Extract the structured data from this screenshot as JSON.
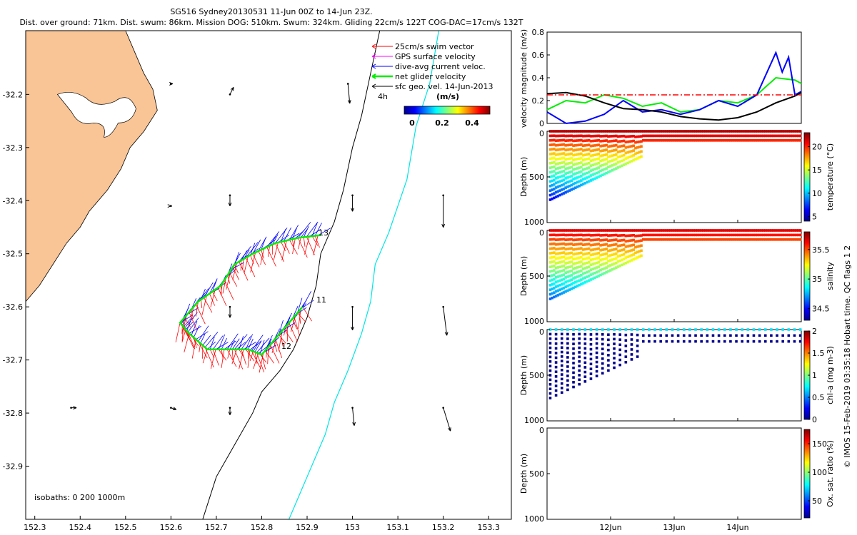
{
  "header": {
    "line1": "SG516 Sydney20130531 11-Jun 00Z to 14-Jun 23Z.",
    "line2": "Dist. over ground: 71km. Dist. swum: 86km. Mission DOG: 510km. Swum: 324km. Gliding 22cm/s 122T COG-DAC=17cm/s 132T"
  },
  "footer_credit": "© IMOS 15-Feb-2019 03:35:18 Hobart time. QC flags 1  2",
  "colors": {
    "land": "#f9c596",
    "swim_vector": "#ff0000",
    "gps_velocity": "#ff00ff",
    "dive_avg": "#0000ff",
    "net_velocity": "#00ee00",
    "sfc_geo": "#000000",
    "cyan_contour": "#00e5e5"
  },
  "chart_data": [
    {
      "type": "map",
      "xlim": [
        152.28,
        153.35
      ],
      "ylim": [
        -33.0,
        -32.08
      ],
      "x_ticks": [
        "152.3",
        "152.4",
        "152.5",
        "152.6",
        "152.7",
        "152.8",
        "152.9",
        "153",
        "153.1",
        "153.2",
        "153.3"
      ],
      "y_ticks": [
        "-32.2",
        "-32.3",
        "-32.4",
        "-32.5",
        "-32.6",
        "-32.7",
        "-32.8",
        "-32.9"
      ],
      "legend": [
        "25cm/s swim vector",
        "GPS surface velocity",
        "dive-avg current veloc.",
        "net glider velocity",
        "sfc geo. vel. 14-Jun-2013"
      ],
      "legend_note": "4h",
      "colorbar": {
        "label": "(m/s)",
        "ticks": [
          "0",
          "0.2",
          "0.4"
        ],
        "range": [
          0,
          0.5
        ]
      },
      "isobath_text": "isobaths: 0   200  1000m",
      "track_labels": [
        {
          "text": "11",
          "lon": 152.91,
          "lat": -32.59
        },
        {
          "text": "12",
          "lon": 152.79,
          "lat": -32.69
        },
        {
          "text": "13",
          "lon": 152.91,
          "lat": -32.48
        }
      ],
      "track": [
        [
          152.89,
          -32.6
        ],
        [
          152.86,
          -32.63
        ],
        [
          152.83,
          -32.66
        ],
        [
          152.8,
          -32.69
        ],
        [
          152.77,
          -32.68
        ],
        [
          152.73,
          -32.68
        ],
        [
          152.68,
          -32.68
        ],
        [
          152.64,
          -32.65
        ],
        [
          152.62,
          -32.63
        ],
        [
          152.66,
          -32.59
        ],
        [
          152.71,
          -32.56
        ],
        [
          152.74,
          -32.52
        ],
        [
          152.78,
          -32.5
        ],
        [
          152.83,
          -32.48
        ],
        [
          152.88,
          -32.47
        ],
        [
          152.93,
          -32.465
        ]
      ],
      "geo_vectors": [
        {
          "lon": 152.6,
          "lat": -32.18,
          "u": 0.01,
          "v": 0.0
        },
        {
          "lon": 152.73,
          "lat": -32.2,
          "u": 0.02,
          "v": 0.04
        },
        {
          "lon": 152.99,
          "lat": -32.18,
          "u": 0.01,
          "v": -0.11
        },
        {
          "lon": 152.6,
          "lat": -32.41,
          "u": 0.0,
          "v": 0.0
        },
        {
          "lon": 152.73,
          "lat": -32.39,
          "u": 0.0,
          "v": -0.06
        },
        {
          "lon": 153.0,
          "lat": -32.39,
          "u": 0.0,
          "v": -0.09
        },
        {
          "lon": 153.2,
          "lat": -32.39,
          "u": 0.0,
          "v": -0.18
        },
        {
          "lon": 152.73,
          "lat": -32.6,
          "u": 0.0,
          "v": -0.06
        },
        {
          "lon": 153.0,
          "lat": -32.6,
          "u": 0.0,
          "v": -0.13
        },
        {
          "lon": 153.2,
          "lat": -32.6,
          "u": 0.02,
          "v": -0.16
        },
        {
          "lon": 152.38,
          "lat": -32.79,
          "u": 0.03,
          "v": 0.0
        },
        {
          "lon": 152.6,
          "lat": -32.79,
          "u": 0.03,
          "v": -0.01
        },
        {
          "lon": 152.73,
          "lat": -32.79,
          "u": 0.0,
          "v": -0.04
        },
        {
          "lon": 153.0,
          "lat": -32.79,
          "u": 0.01,
          "v": -0.1
        },
        {
          "lon": 153.2,
          "lat": -32.79,
          "u": 0.04,
          "v": -0.13
        }
      ],
      "coastline": [
        [
          152.28,
          -32.08
        ],
        [
          152.5,
          -32.08
        ],
        [
          152.52,
          -32.12
        ],
        [
          152.54,
          -32.16
        ],
        [
          152.56,
          -32.19
        ],
        [
          152.57,
          -32.23
        ],
        [
          152.54,
          -32.27
        ],
        [
          152.51,
          -32.3
        ],
        [
          152.49,
          -32.34
        ],
        [
          152.46,
          -32.38
        ],
        [
          152.42,
          -32.42
        ],
        [
          152.4,
          -32.45
        ],
        [
          152.37,
          -32.48
        ],
        [
          152.34,
          -32.52
        ],
        [
          152.31,
          -32.56
        ],
        [
          152.29,
          -32.58
        ],
        [
          152.28,
          -32.59
        ]
      ],
      "isobath_200": [
        [
          153.06,
          -32.08
        ],
        [
          153.04,
          -32.16
        ],
        [
          153.02,
          -32.24
        ],
        [
          153.0,
          -32.3
        ],
        [
          152.98,
          -32.38
        ],
        [
          152.96,
          -32.44
        ],
        [
          152.93,
          -32.5
        ],
        [
          152.92,
          -32.56
        ],
        [
          152.9,
          -32.62
        ],
        [
          152.87,
          -32.68
        ],
        [
          152.84,
          -32.72
        ],
        [
          152.8,
          -32.76
        ],
        [
          152.78,
          -32.8
        ],
        [
          152.74,
          -32.86
        ],
        [
          152.7,
          -32.92
        ],
        [
          152.67,
          -33.0
        ]
      ],
      "isobath_1000": [
        [
          153.19,
          -32.08
        ],
        [
          153.17,
          -32.18
        ],
        [
          153.14,
          -32.26
        ],
        [
          153.12,
          -32.36
        ],
        [
          153.08,
          -32.46
        ],
        [
          153.05,
          -32.52
        ],
        [
          153.04,
          -32.59
        ],
        [
          153.02,
          -32.65
        ],
        [
          152.99,
          -32.72
        ],
        [
          152.96,
          -32.78
        ],
        [
          152.94,
          -32.84
        ],
        [
          152.92,
          -32.88
        ],
        [
          152.9,
          -32.92
        ],
        [
          152.88,
          -32.96
        ],
        [
          152.86,
          -33.0
        ]
      ]
    },
    {
      "type": "line",
      "ylabel": "velocity magnitude (m/s)",
      "ylim": [
        0,
        0.8
      ],
      "y_ticks": [
        "0",
        "0.2",
        "0.4",
        "0.6",
        "0.8"
      ],
      "x_days": [
        11,
        15
      ],
      "series": [
        {
          "color": "#00ee00",
          "style": "solid",
          "t": [
            11.0,
            11.3,
            11.6,
            11.9,
            12.2,
            12.5,
            12.8,
            13.1,
            13.4,
            13.7,
            14.0,
            14.3,
            14.6,
            14.9,
            15.0
          ],
          "values": [
            0.12,
            0.2,
            0.18,
            0.25,
            0.22,
            0.15,
            0.18,
            0.1,
            0.12,
            0.2,
            0.18,
            0.25,
            0.4,
            0.38,
            0.35
          ]
        },
        {
          "color": "#0000ff",
          "style": "solid",
          "t": [
            11.0,
            11.3,
            11.6,
            11.9,
            12.2,
            12.5,
            12.8,
            13.1,
            13.4,
            13.7,
            14.0,
            14.3,
            14.6,
            14.7,
            14.8,
            14.9,
            15.0
          ],
          "values": [
            0.1,
            0.0,
            0.02,
            0.08,
            0.2,
            0.1,
            0.12,
            0.08,
            0.12,
            0.2,
            0.15,
            0.25,
            0.62,
            0.45,
            0.58,
            0.25,
            0.28
          ]
        },
        {
          "color": "#000000",
          "style": "solid",
          "t": [
            11.0,
            11.3,
            11.6,
            11.9,
            12.2,
            12.5,
            12.8,
            13.1,
            13.4,
            13.7,
            14.0,
            14.3,
            14.6,
            14.9,
            15.0
          ],
          "values": [
            0.26,
            0.27,
            0.24,
            0.18,
            0.13,
            0.12,
            0.1,
            0.06,
            0.04,
            0.03,
            0.05,
            0.1,
            0.18,
            0.24,
            0.27
          ]
        },
        {
          "color": "#ff0000",
          "style": "dashdot",
          "t": [
            11.0,
            15.0
          ],
          "values": [
            0.25,
            0.25
          ]
        }
      ]
    },
    {
      "type": "scatter",
      "ylabel": "Depth (m)",
      "ylim": [
        1000,
        0
      ],
      "y_ticks": [
        "0",
        "500",
        "1000"
      ],
      "colorbar": {
        "label": "temperature (°C)",
        "ticks": [
          "5",
          "10",
          "15",
          "20"
        ],
        "range": [
          4,
          23
        ]
      }
    },
    {
      "type": "scatter",
      "ylabel": "Depth (m)",
      "ylim": [
        1000,
        0
      ],
      "y_ticks": [
        "0",
        "500",
        "1000"
      ],
      "colorbar": {
        "label": "salinity",
        "ticks": [
          "34.5",
          "35",
          "35.5"
        ],
        "range": [
          34.3,
          35.8
        ]
      }
    },
    {
      "type": "scatter",
      "ylabel": "Depth (m)",
      "ylim": [
        1000,
        0
      ],
      "y_ticks": [
        "0",
        "500",
        "1000"
      ],
      "colorbar": {
        "label": "chl-a (mg m-3)",
        "ticks": [
          "0",
          "0.5",
          "1",
          "1.5",
          "2"
        ],
        "range": [
          0,
          2
        ]
      }
    },
    {
      "type": "scatter",
      "ylabel": "Depth (m)",
      "ylim": [
        1000,
        0
      ],
      "y_ticks": [
        "0",
        "500",
        "1000"
      ],
      "x_ticks": [
        "12Jun",
        "13Jun",
        "14Jun"
      ],
      "colorbar": {
        "label": "Ox. sat. ratio (%)",
        "ticks": [
          "50",
          "100",
          "150"
        ],
        "range": [
          20,
          175
        ]
      }
    }
  ]
}
